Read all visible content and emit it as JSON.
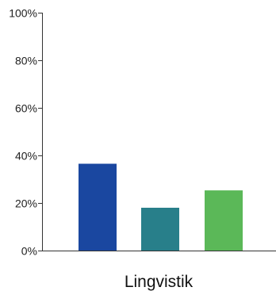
{
  "chart_data": {
    "type": "bar",
    "categories": [
      "Lingvistik"
    ],
    "series": [
      {
        "values": [
          36.5
        ],
        "color": "#1a47a0"
      },
      {
        "values": [
          18
        ],
        "color": "#287f8a"
      },
      {
        "values": [
          25.3
        ],
        "color": "#5bb858"
      }
    ],
    "yticks": [
      {
        "value": 0,
        "label": "0%"
      },
      {
        "value": 20,
        "label": "20%"
      },
      {
        "value": 40,
        "label": "40%"
      },
      {
        "value": 60,
        "label": "60%"
      },
      {
        "value": 80,
        "label": "80%"
      },
      {
        "value": 100,
        "label": "100%"
      }
    ],
    "ylim": [
      0,
      100
    ],
    "grid": false,
    "legend": "none"
  }
}
